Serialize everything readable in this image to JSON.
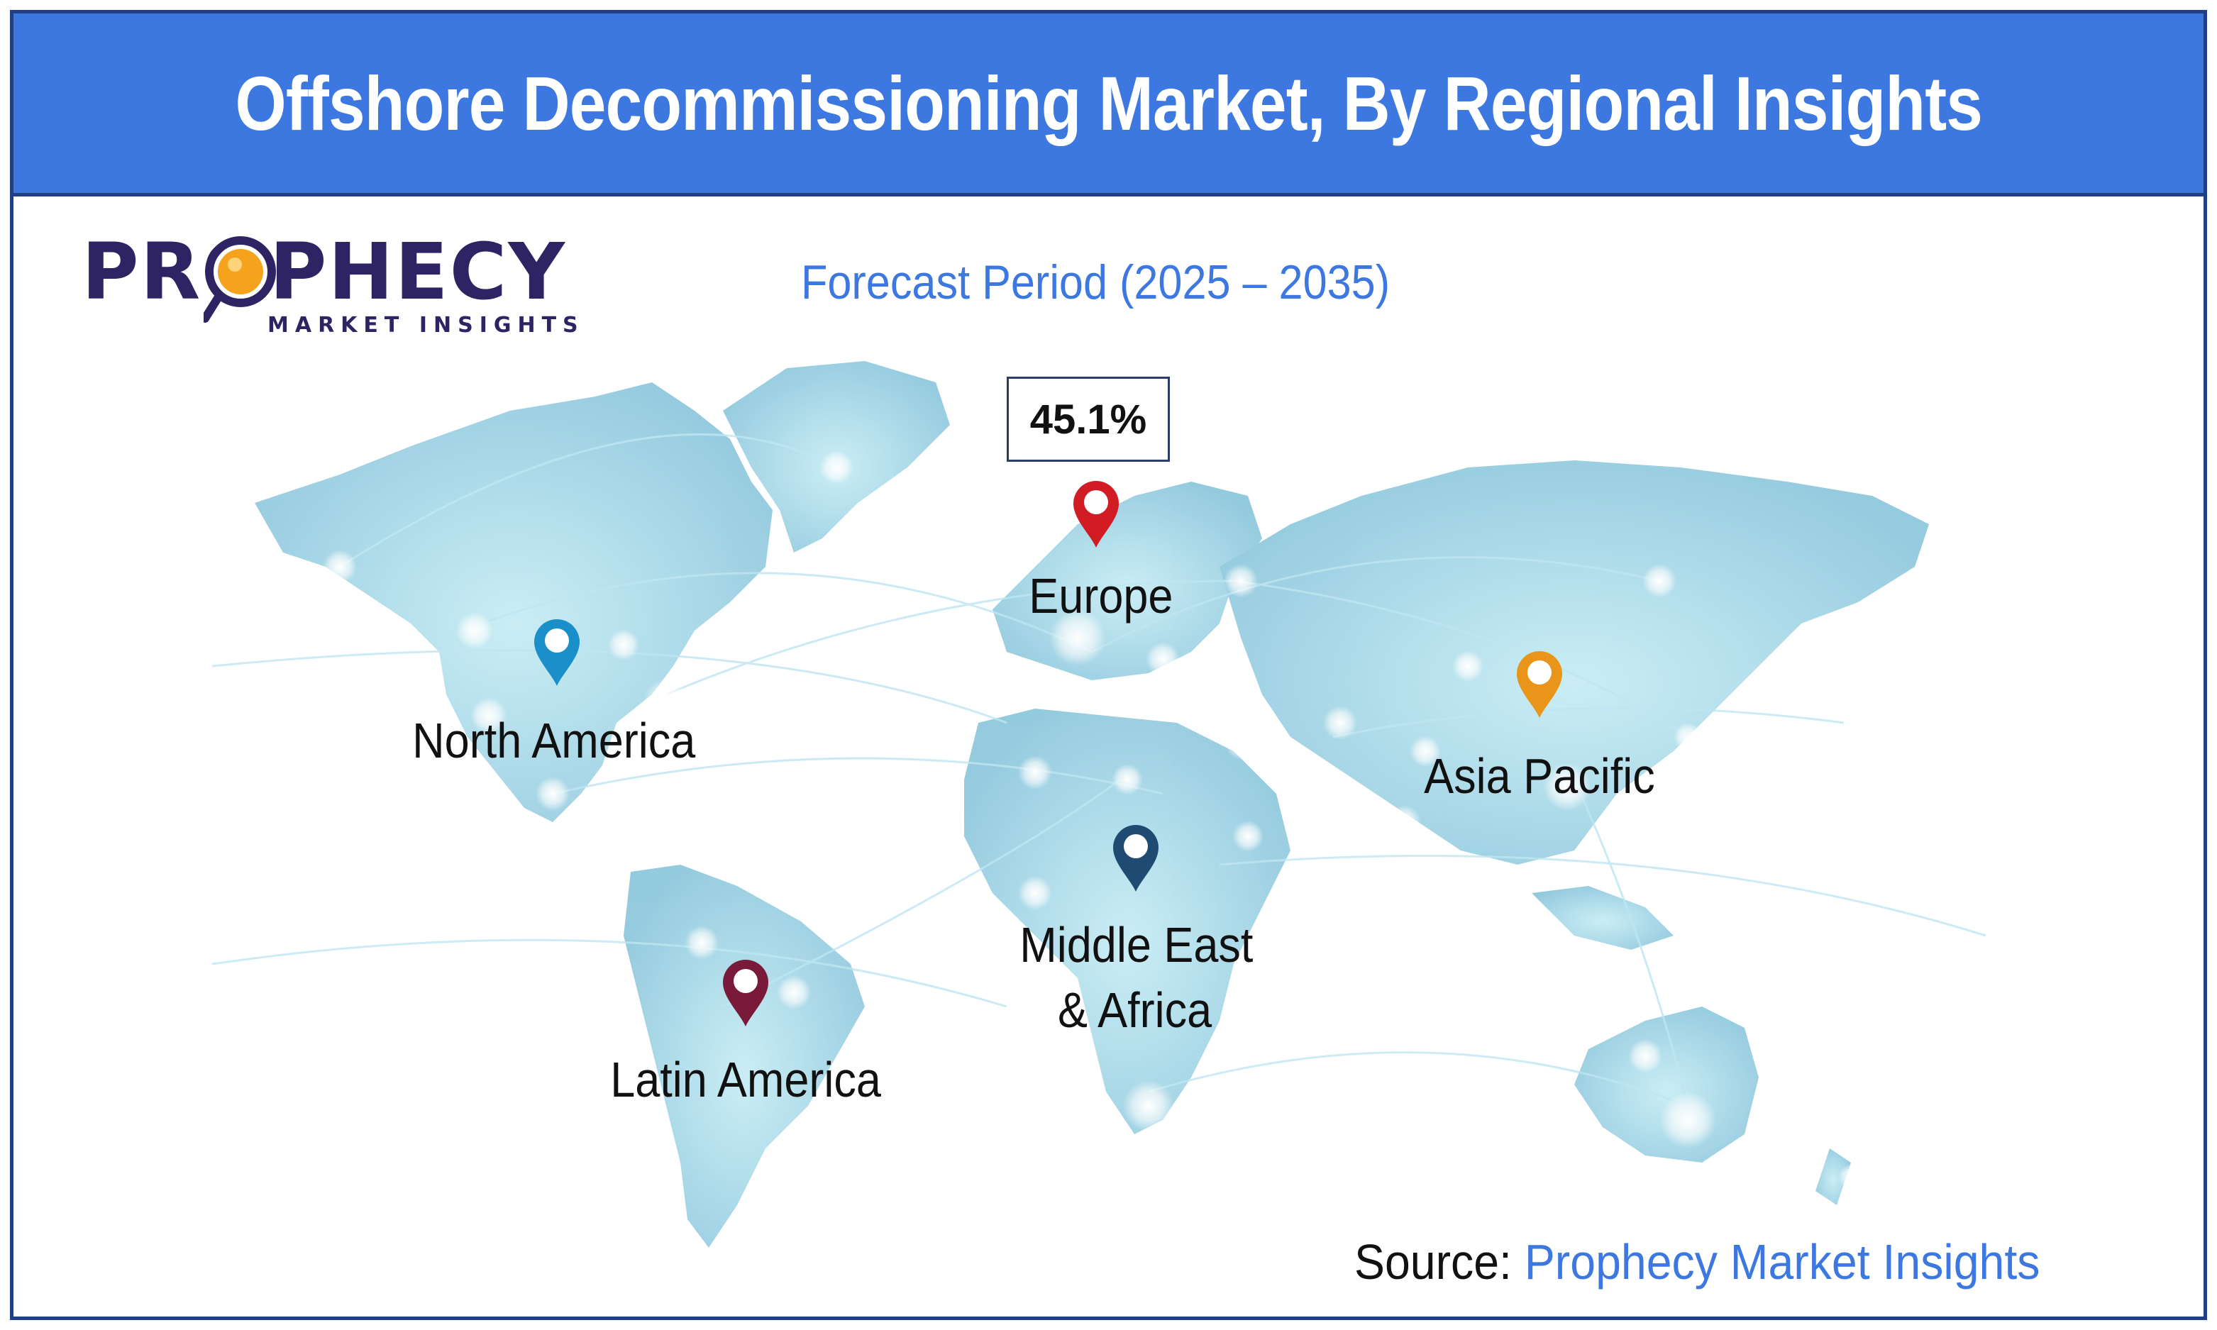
{
  "header": {
    "title": "Offshore Decommissioning Market, By Regional Insights"
  },
  "logo": {
    "wordmark": "PROPHECY",
    "tagline": "MARKET INSIGHTS"
  },
  "subtitle": "Forecast Period (2025 – 2035)",
  "callout": {
    "value": "45.1%",
    "region": "Europe"
  },
  "regions": [
    {
      "label": "North America",
      "pin_color": "#1a8fc9"
    },
    {
      "label": "Europe",
      "pin_color": "#d11c24"
    },
    {
      "label": "Asia Pacific",
      "pin_color": "#e8951a"
    },
    {
      "label": "Middle East & Africa",
      "line1": "Middle East",
      "line2": "& Africa",
      "pin_color": "#1f4b73"
    },
    {
      "label": "Latin America",
      "pin_color": "#7a1a3a"
    }
  ],
  "source": {
    "prefix": "Source:",
    "name": "Prophecy Market Insights"
  },
  "colors": {
    "header": "#3d78e0",
    "border": "#1f3f86",
    "map_land": "#a6d6e6",
    "accent": "#3d78e0"
  }
}
